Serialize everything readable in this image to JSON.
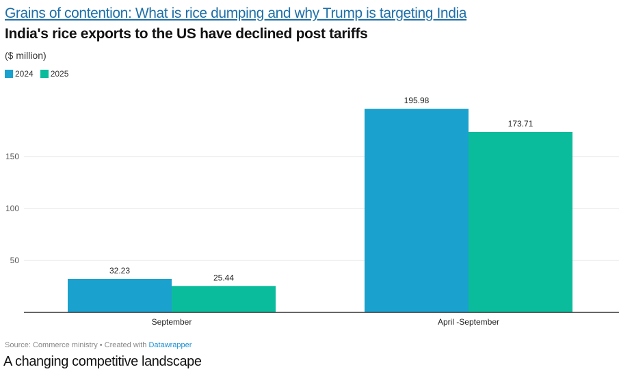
{
  "header": {
    "link_text": "Grains of contention: What is rice dumping and why Trump is targeting India",
    "title": "India's rice exports to the US have declined post tariffs",
    "subtitle": "($ million)"
  },
  "chart_data": {
    "type": "bar",
    "title": "India's rice exports to the US have declined post tariffs",
    "ylabel": "($ million)",
    "xlabel": "",
    "categories": [
      "September",
      "April -September"
    ],
    "series": [
      {
        "name": "2024",
        "color": "#1aa1cd",
        "values": [
          32.23,
          195.98
        ],
        "labels": [
          "32.23",
          "195.98"
        ]
      },
      {
        "name": "2025",
        "color": "#0bbc9c",
        "values": [
          25.44,
          173.71
        ],
        "labels": [
          "25.44",
          "173.71"
        ]
      }
    ],
    "yticks": [
      50,
      100,
      150
    ],
    "ylim": [
      0,
      210
    ],
    "grid": true,
    "legend": "top-left"
  },
  "footer": {
    "source": "Source: Commerce ministry • Created with ",
    "source_link": "Datawrapper",
    "next_heading": "A changing competitive landscape"
  }
}
